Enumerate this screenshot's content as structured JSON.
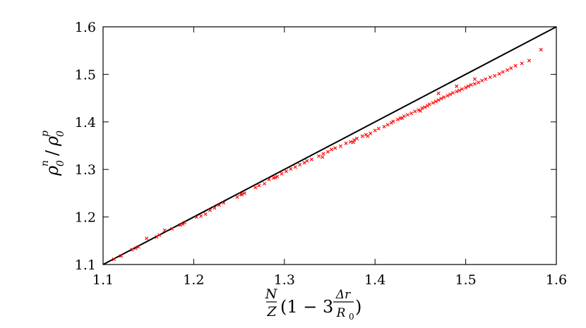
{
  "chart_data": {
    "type": "scatter",
    "title": "",
    "xlabel": "N/Z(1 − 3Δr/R₀)",
    "ylabel": "ρ₀ⁿ/ρ₀ᵖ",
    "xlim": [
      1.1,
      1.6
    ],
    "ylim": [
      1.1,
      1.6
    ],
    "x_ticks": [
      "1.1",
      "1.2",
      "1.3",
      "1.4",
      "1.5",
      "1.6"
    ],
    "y_ticks": [
      "1.1",
      "1.2",
      "1.3",
      "1.4",
      "1.5",
      "1.6"
    ],
    "grid": false,
    "legend": "none",
    "marker": "x",
    "colors": {
      "points": "#ff0000",
      "reference_line": "#000000"
    },
    "reference_line": {
      "kind": "y = x",
      "x": [
        1.1,
        1.6
      ],
      "y": [
        1.1,
        1.6
      ]
    },
    "series": [
      {
        "x": [
          1.112,
          1.12,
          1.132,
          1.136,
          1.139,
          1.148,
          1.159,
          1.162,
          1.168,
          1.176,
          1.185,
          1.188,
          1.19,
          1.203,
          1.208,
          1.213,
          1.218,
          1.223,
          1.228,
          1.233,
          1.248,
          1.252,
          1.256,
          1.268,
          1.272,
          1.278,
          1.283,
          1.288,
          1.292,
          1.297,
          1.302,
          1.307,
          1.312,
          1.317,
          1.322,
          1.325,
          1.33,
          1.338,
          1.343,
          1.348,
          1.352,
          1.356,
          1.362,
          1.368,
          1.373,
          1.377,
          1.38,
          1.386,
          1.39,
          1.395,
          1.4,
          1.404,
          1.41,
          1.414,
          1.418,
          1.42,
          1.425,
          1.428,
          1.432,
          1.436,
          1.44,
          1.444,
          1.448,
          1.452,
          1.455,
          1.458,
          1.46,
          1.464,
          1.467,
          1.47,
          1.473,
          1.476,
          1.48,
          1.483,
          1.486,
          1.49,
          1.493,
          1.496,
          1.5,
          1.503,
          1.506,
          1.51,
          1.514,
          1.518,
          1.522,
          1.527,
          1.532,
          1.537,
          1.541,
          1.546,
          1.55,
          1.555,
          1.562,
          1.57,
          1.583,
          1.47,
          1.49,
          1.51,
          1.43,
          1.45,
          1.376,
          1.392,
          1.342,
          1.29,
          1.253
        ],
        "y": [
          1.111,
          1.118,
          1.131,
          1.134,
          1.137,
          1.155,
          1.158,
          1.162,
          1.172,
          1.175,
          1.183,
          1.185,
          1.188,
          1.2,
          1.202,
          1.206,
          1.214,
          1.219,
          1.225,
          1.23,
          1.242,
          1.248,
          1.25,
          1.262,
          1.266,
          1.27,
          1.279,
          1.282,
          1.285,
          1.291,
          1.296,
          1.301,
          1.305,
          1.31,
          1.314,
          1.318,
          1.321,
          1.328,
          1.333,
          1.337,
          1.342,
          1.345,
          1.349,
          1.355,
          1.358,
          1.362,
          1.365,
          1.37,
          1.373,
          1.376,
          1.382,
          1.386,
          1.39,
          1.394,
          1.398,
          1.401,
          1.405,
          1.408,
          1.412,
          1.415,
          1.418,
          1.422,
          1.425,
          1.429,
          1.431,
          1.434,
          1.437,
          1.44,
          1.443,
          1.446,
          1.449,
          1.452,
          1.455,
          1.458,
          1.461,
          1.464,
          1.466,
          1.469,
          1.472,
          1.475,
          1.478,
          1.48,
          1.483,
          1.487,
          1.49,
          1.494,
          1.497,
          1.501,
          1.505,
          1.509,
          1.513,
          1.518,
          1.523,
          1.529,
          1.552,
          1.46,
          1.475,
          1.49,
          1.408,
          1.423,
          1.357,
          1.37,
          1.326,
          1.283,
          1.247
        ]
      }
    ]
  }
}
